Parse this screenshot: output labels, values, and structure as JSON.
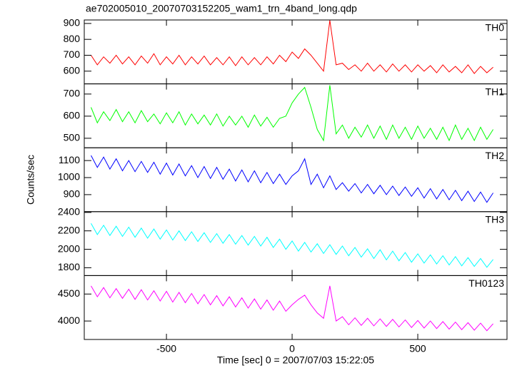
{
  "chart_data": {
    "type": "line",
    "title": "ae702005010_20070703152205_wam1_trn_4band_long.qdp",
    "xlabel": "Time [sec] 0 = 2007/07/03 15:22:05",
    "ylabel": "Counts/sec",
    "xlim": [
      -827,
      855
    ],
    "xticks": [
      -500,
      0,
      500
    ],
    "x": [
      -800,
      -775,
      -750,
      -725,
      -700,
      -675,
      -650,
      -625,
      -600,
      -575,
      -550,
      -525,
      -500,
      -475,
      -450,
      -425,
      -400,
      -375,
      -350,
      -325,
      -300,
      -275,
      -250,
      -225,
      -200,
      -175,
      -150,
      -125,
      -100,
      -75,
      -50,
      -25,
      0,
      25,
      50,
      75,
      100,
      125,
      150,
      175,
      200,
      225,
      250,
      275,
      300,
      325,
      350,
      375,
      400,
      425,
      450,
      475,
      500,
      525,
      550,
      575,
      600,
      625,
      650,
      675,
      700,
      725,
      750,
      775,
      800
    ],
    "panels": [
      {
        "ylim": [
          520,
          922
        ],
        "yticks": [
          600,
          700,
          800,
          900
        ],
        "series": [
          {
            "name": "TH0",
            "color": "#ff0000",
            "values": [
              700,
              640,
              690,
              650,
              700,
              645,
              690,
              640,
              695,
              650,
              710,
              640,
              690,
              645,
              700,
              640,
              690,
              645,
              695,
              640,
              685,
              640,
              690,
              635,
              690,
              640,
              685,
              640,
              690,
              645,
              700,
              660,
              720,
              680,
              740,
              700,
              650,
              600,
              920,
              640,
              650,
              610,
              640,
              600,
              650,
              600,
              640,
              595,
              645,
              600,
              640,
              595,
              640,
              600,
              635,
              590,
              640,
              595,
              630,
              590,
              640,
              585,
              630,
              590,
              625
            ]
          }
        ]
      },
      {
        "ylim": [
          457,
          746
        ],
        "yticks": [
          500,
          600,
          700
        ],
        "series": [
          {
            "name": "TH1",
            "color": "#00ff00",
            "values": [
              640,
              570,
              620,
              580,
              630,
              575,
              620,
              570,
              625,
              575,
              610,
              565,
              615,
              570,
              620,
              560,
              610,
              565,
              605,
              560,
              610,
              555,
              600,
              560,
              600,
              550,
              605,
              555,
              595,
              550,
              590,
              600,
              660,
              700,
              730,
              640,
              540,
              490,
              740,
              520,
              560,
              500,
              550,
              505,
              560,
              500,
              555,
              495,
              560,
              500,
              550,
              495,
              555,
              500,
              545,
              495,
              550,
              490,
              560,
              495,
              545,
              490,
              550,
              495,
              540
            ]
          }
        ]
      },
      {
        "ylim": [
          800,
          1175
        ],
        "yticks": [
          900,
          1000,
          1100
        ],
        "series": [
          {
            "name": "TH2",
            "color": "#0000ff",
            "values": [
              1130,
              1060,
              1120,
              1050,
              1110,
              1040,
              1100,
              1035,
              1095,
              1030,
              1090,
              1020,
              1085,
              1015,
              1080,
              1010,
              1070,
              1000,
              1065,
              995,
              1060,
              990,
              1050,
              980,
              1045,
              975,
              1040,
              970,
              1030,
              965,
              1020,
              960,
              1010,
              1040,
              1110,
              960,
              1020,
              940,
              1010,
              930,
              970,
              920,
              965,
              910,
              960,
              905,
              955,
              900,
              950,
              895,
              945,
              890,
              940,
              880,
              935,
              875,
              930,
              870,
              925,
              865,
              920,
              860,
              915,
              855,
              910
            ]
          }
        ]
      },
      {
        "ylim": [
          1715,
          2408
        ],
        "yticks": [
          1800,
          2000,
          2200,
          2400
        ],
        "series": [
          {
            "name": "TH3",
            "color": "#00ffff",
            "values": [
              2280,
              2160,
              2260,
              2150,
              2250,
              2140,
              2240,
              2130,
              2230,
              2120,
              2220,
              2110,
              2210,
              2100,
              2200,
              2095,
              2190,
              2085,
              2180,
              2075,
              2170,
              2065,
              2160,
              2055,
              2150,
              2045,
              2140,
              2035,
              2130,
              2020,
              2110,
              2000,
              2090,
              1980,
              2075,
              1970,
              2060,
              1955,
              2050,
              1945,
              2035,
              1930,
              2020,
              1915,
              2005,
              1900,
              1995,
              1885,
              1980,
              1875,
              1965,
              1860,
              1950,
              1850,
              1940,
              1840,
              1930,
              1830,
              1920,
              1820,
              1910,
              1815,
              1900,
              1805,
              1890
            ]
          }
        ]
      },
      {
        "ylim": [
          3658,
          4842
        ],
        "yticks": [
          4000,
          4500
        ],
        "series": [
          {
            "name": "TH0123",
            "color": "#ff00ff",
            "values": [
              4650,
              4450,
              4620,
              4430,
              4600,
              4420,
              4590,
              4400,
              4580,
              4390,
              4560,
              4370,
              4550,
              4350,
              4530,
              4340,
              4510,
              4320,
              4490,
              4300,
              4470,
              4280,
              4450,
              4260,
              4430,
              4240,
              4410,
              4220,
              4390,
              4200,
              4370,
              4180,
              4300,
              4400,
              4480,
              4300,
              4150,
              4050,
              4650,
              4000,
              4080,
              3930,
              4060,
              3920,
              4050,
              3910,
              4040,
              3900,
              4030,
              3890,
              4020,
              3880,
              4010,
              3870,
              4000,
              3860,
              3990,
              3850,
              3980,
              3840,
              3970,
              3830,
              3960,
              3820,
              3950
            ]
          }
        ]
      }
    ]
  }
}
